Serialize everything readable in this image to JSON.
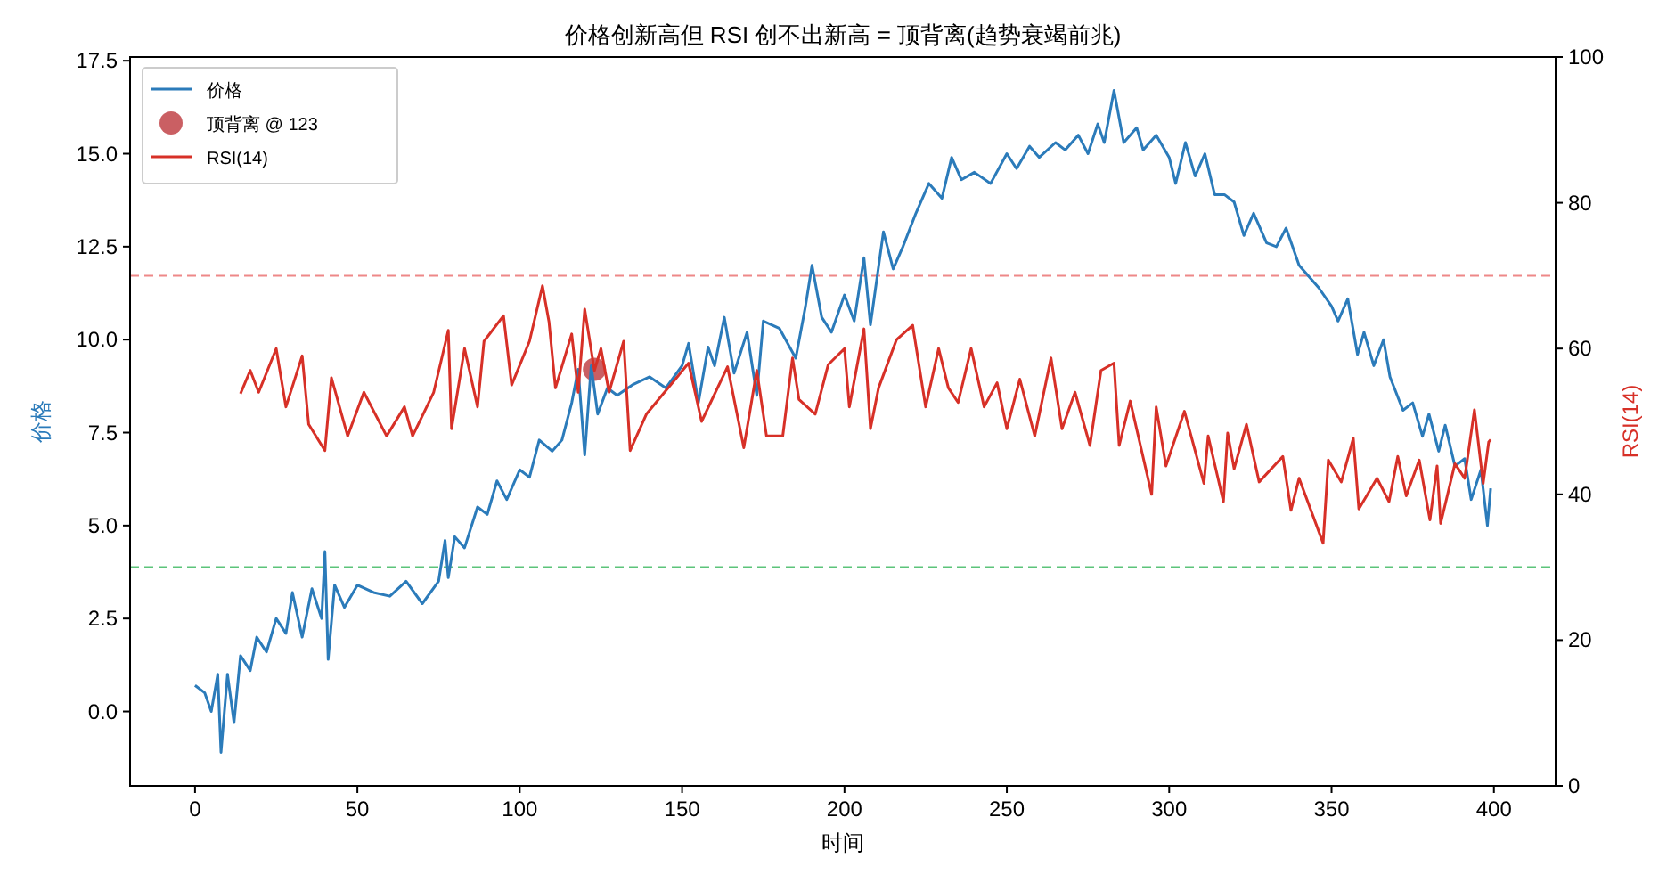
{
  "chart_data": {
    "type": "line",
    "title": "价格创新高但 RSI 创不出新高 = 顶背离(趋势衰竭前兆)",
    "xlabel": "时间",
    "ylabel": "价格",
    "y2label": "RSI(14)",
    "xlim": [
      -20,
      419
    ],
    "xticks": [
      0,
      50,
      100,
      150,
      200,
      250,
      300,
      350,
      400
    ],
    "ylim": [
      -2.0,
      17.6
    ],
    "yticks": [
      {
        "value": 0,
        "label": "0.0"
      },
      {
        "value": 2.5,
        "label": "2.5"
      },
      {
        "value": 5,
        "label": "5.0"
      },
      {
        "value": 7.5,
        "label": "7.5"
      },
      {
        "value": 10,
        "label": "10.0"
      },
      {
        "value": 12.5,
        "label": "12.5"
      },
      {
        "value": 15,
        "label": "15.0"
      },
      {
        "value": 17.5,
        "label": "17.5"
      }
    ],
    "y2lim": [
      0,
      100
    ],
    "y2ticks": [
      0,
      20,
      40,
      60,
      80,
      100
    ],
    "legend": "top left",
    "grid": false,
    "ref_lines": [
      {
        "axis": "y2",
        "value": 70,
        "color": "#ee8888",
        "line_style": "dashed"
      },
      {
        "axis": "y2",
        "value": 30,
        "color": "#5cc47a",
        "line_style": "dashed"
      }
    ],
    "series": [
      {
        "name": "价格",
        "color": "#2b7bba",
        "x": [
          0,
          3,
          5,
          7,
          8,
          10,
          12,
          14,
          17,
          19,
          22,
          25,
          28,
          30,
          33,
          36,
          39,
          40,
          41,
          43,
          46,
          50,
          55,
          60,
          65,
          70,
          75,
          77,
          78,
          80,
          83,
          87,
          90,
          93,
          96,
          100,
          103,
          106,
          110,
          113,
          116,
          118,
          120,
          122,
          124,
          127,
          130,
          135,
          140,
          145,
          150,
          152,
          155,
          158,
          160,
          163,
          166,
          170,
          173,
          175,
          180,
          185,
          188,
          190,
          193,
          196,
          200,
          203,
          206,
          208,
          212,
          215,
          218,
          222,
          226,
          230,
          233,
          236,
          240,
          245,
          250,
          253,
          257,
          260,
          265,
          268,
          272,
          275,
          278,
          280,
          283,
          286,
          290,
          292,
          296,
          300,
          302,
          305,
          308,
          311,
          314,
          317,
          320,
          323,
          326,
          330,
          333,
          336,
          340,
          343,
          346,
          350,
          352,
          355,
          358,
          360,
          363,
          366,
          368,
          372,
          375,
          378,
          380,
          383,
          385,
          388,
          391,
          393,
          396,
          398,
          399
        ],
        "values": [
          0.7,
          0.5,
          0,
          1.0,
          -1.1,
          1.0,
          -0.3,
          1.5,
          1.1,
          2.0,
          1.6,
          2.5,
          2.1,
          3.2,
          2.0,
          3.3,
          2.5,
          4.3,
          1.4,
          3.4,
          2.8,
          3.4,
          3.2,
          3.1,
          3.5,
          2.9,
          3.5,
          4.6,
          3.6,
          4.7,
          4.4,
          5.5,
          5.3,
          6.2,
          5.7,
          6.5,
          6.3,
          7.3,
          7.0,
          7.3,
          8.3,
          9.2,
          6.9,
          9.3,
          8.0,
          8.7,
          8.5,
          8.8,
          9.0,
          8.7,
          9.3,
          9.9,
          8.3,
          9.8,
          9.3,
          10.6,
          9.1,
          10.2,
          8.5,
          10.5,
          10.3,
          9.5,
          10.9,
          12.0,
          10.6,
          10.2,
          11.2,
          10.5,
          12.2,
          10.4,
          12.9,
          11.9,
          12.5,
          13.4,
          14.2,
          13.8,
          14.9,
          14.3,
          14.5,
          14.2,
          15.0,
          14.6,
          15.2,
          14.9,
          15.3,
          15.1,
          15.5,
          15.0,
          15.8,
          15.3,
          16.7,
          15.3,
          15.7,
          15.1,
          15.5,
          14.9,
          14.2,
          15.3,
          14.4,
          15.0,
          13.9,
          13.9,
          13.7,
          12.8,
          13.4,
          12.6,
          12.5,
          13.0,
          12.0,
          11.7,
          11.4,
          10.9,
          10.5,
          11.1,
          9.6,
          10.2,
          9.3,
          10.0,
          9.0,
          8.1,
          8.3,
          7.4,
          8.0,
          7.0,
          7.7,
          6.6,
          6.8,
          5.7,
          6.5,
          5.0,
          6.0
        ]
      },
      {
        "name": "顶背离 @ 123",
        "type": "scatter",
        "color": "#c44e52",
        "marker": "circle",
        "x": [
          123
        ],
        "values": [
          9.2
        ]
      },
      {
        "name": "RSI(14)",
        "axis": "y2",
        "color": "#d73027",
        "x": [
          14,
          17,
          19.6,
          25,
          28,
          33,
          35,
          40,
          42,
          47,
          52,
          59,
          64.5,
          67,
          73.5,
          78,
          79,
          83,
          87,
          89,
          95,
          97.5,
          103,
          107,
          109,
          111,
          116,
          118,
          120,
          123,
          125,
          127.5,
          132,
          134,
          139,
          152,
          156,
          164,
          169,
          173,
          176,
          181,
          184,
          186,
          191,
          195,
          200,
          201.5,
          206,
          208,
          210.5,
          216,
          221,
          225,
          229,
          232,
          235,
          239,
          243,
          247,
          250,
          254,
          258.6,
          263.6,
          267,
          271,
          275.6,
          279,
          283,
          284.6,
          288,
          294.6,
          296,
          299,
          304.7,
          310.7,
          312,
          316.7,
          318,
          320,
          323.8,
          327.7,
          335,
          337.5,
          340,
          347.4,
          349,
          353,
          356.7,
          358.4,
          364,
          367.7,
          370.4,
          373,
          377,
          380.3,
          382.5,
          383.6,
          388,
          391,
          394,
          396.7,
          398.4,
          399
        ],
        "values": [
          53.8,
          57,
          54,
          60,
          52,
          59,
          49.6,
          46,
          56,
          48,
          54,
          48,
          52,
          48,
          54,
          62.5,
          49,
          60,
          52,
          61,
          64.5,
          55,
          61,
          68.6,
          63.7,
          54.6,
          62,
          54,
          65.4,
          57,
          60,
          54,
          61,
          46,
          51,
          58,
          50,
          57.5,
          46.4,
          57,
          48,
          48,
          58.7,
          53,
          51,
          57.8,
          60,
          52,
          62.7,
          49,
          54.6,
          61.2,
          63.2,
          52,
          60,
          54.6,
          52.6,
          60,
          52,
          55.3,
          49,
          55.8,
          48,
          58.7,
          49,
          54,
          46.7,
          57,
          58,
          46.7,
          52.8,
          40,
          52,
          43.9,
          51.4,
          41.5,
          48,
          39,
          48.4,
          43.5,
          49.6,
          41.7,
          45.2,
          37.8,
          42.2,
          33.3,
          44.7,
          41.7,
          47.7,
          38,
          42.2,
          39,
          45.2,
          39.8,
          44.7,
          36.5,
          43.9,
          36,
          44.2,
          42.2,
          51.6,
          41.5,
          47.2,
          47.5
        ]
      }
    ]
  }
}
